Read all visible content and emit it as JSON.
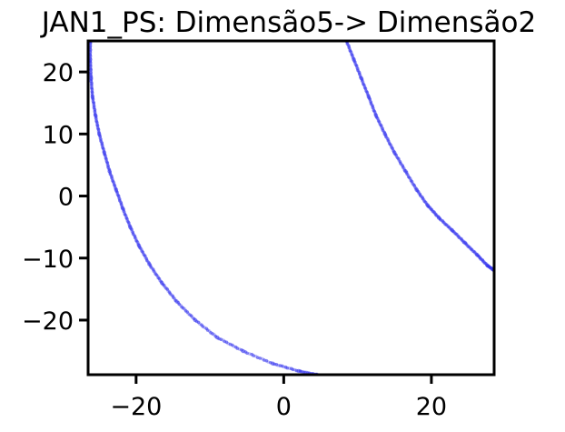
{
  "chart_data": {
    "type": "scatter",
    "title": "JAN1_PS: Dimensão5-> Dimensão2",
    "xlabel": "",
    "ylabel": "",
    "xlim": [
      -26.5,
      28.5
    ],
    "ylim": [
      -28.8,
      25.0
    ],
    "xticks": [
      -20,
      0,
      20
    ],
    "yticks": [
      20,
      10,
      0,
      -10,
      -20
    ],
    "xtick_labels": [
      "−20",
      "0",
      "20"
    ],
    "ytick_labels": [
      "20",
      "10",
      "0",
      "−10",
      "−20"
    ],
    "grid": false,
    "legend": false,
    "point_color": "#3333ee",
    "series": [
      {
        "points": [
          [
            -26.2,
            25.0
          ],
          [
            -26.2,
            22.0
          ],
          [
            -26.1,
            19.0
          ],
          [
            -25.9,
            16.0
          ],
          [
            -25.5,
            13.0
          ],
          [
            -25.0,
            10.0
          ],
          [
            -24.3,
            7.0
          ],
          [
            -23.6,
            4.0
          ],
          [
            -22.7,
            1.0
          ],
          [
            -21.8,
            -2.0
          ],
          [
            -20.8,
            -5.0
          ],
          [
            -19.6,
            -8.0
          ],
          [
            -18.2,
            -11.0
          ],
          [
            -16.5,
            -14.0
          ],
          [
            -14.5,
            -17.0
          ],
          [
            -12.0,
            -20.0
          ],
          [
            -9.0,
            -22.8
          ],
          [
            -5.5,
            -25.0
          ],
          [
            -1.5,
            -27.0
          ],
          [
            2.0,
            -28.2
          ],
          [
            4.5,
            -28.8
          ]
        ]
      },
      {
        "points": [
          [
            8.5,
            25.0
          ],
          [
            9.5,
            22.0
          ],
          [
            10.5,
            19.0
          ],
          [
            11.5,
            16.0
          ],
          [
            12.5,
            13.0
          ],
          [
            13.7,
            10.0
          ],
          [
            15.0,
            7.0
          ],
          [
            16.5,
            4.0
          ],
          [
            18.0,
            1.0
          ],
          [
            19.5,
            -1.5
          ],
          [
            21.0,
            -3.5
          ],
          [
            22.8,
            -5.5
          ],
          [
            24.5,
            -7.5
          ],
          [
            26.2,
            -9.5
          ],
          [
            27.6,
            -11.2
          ],
          [
            28.5,
            -12.0
          ]
        ]
      }
    ]
  }
}
